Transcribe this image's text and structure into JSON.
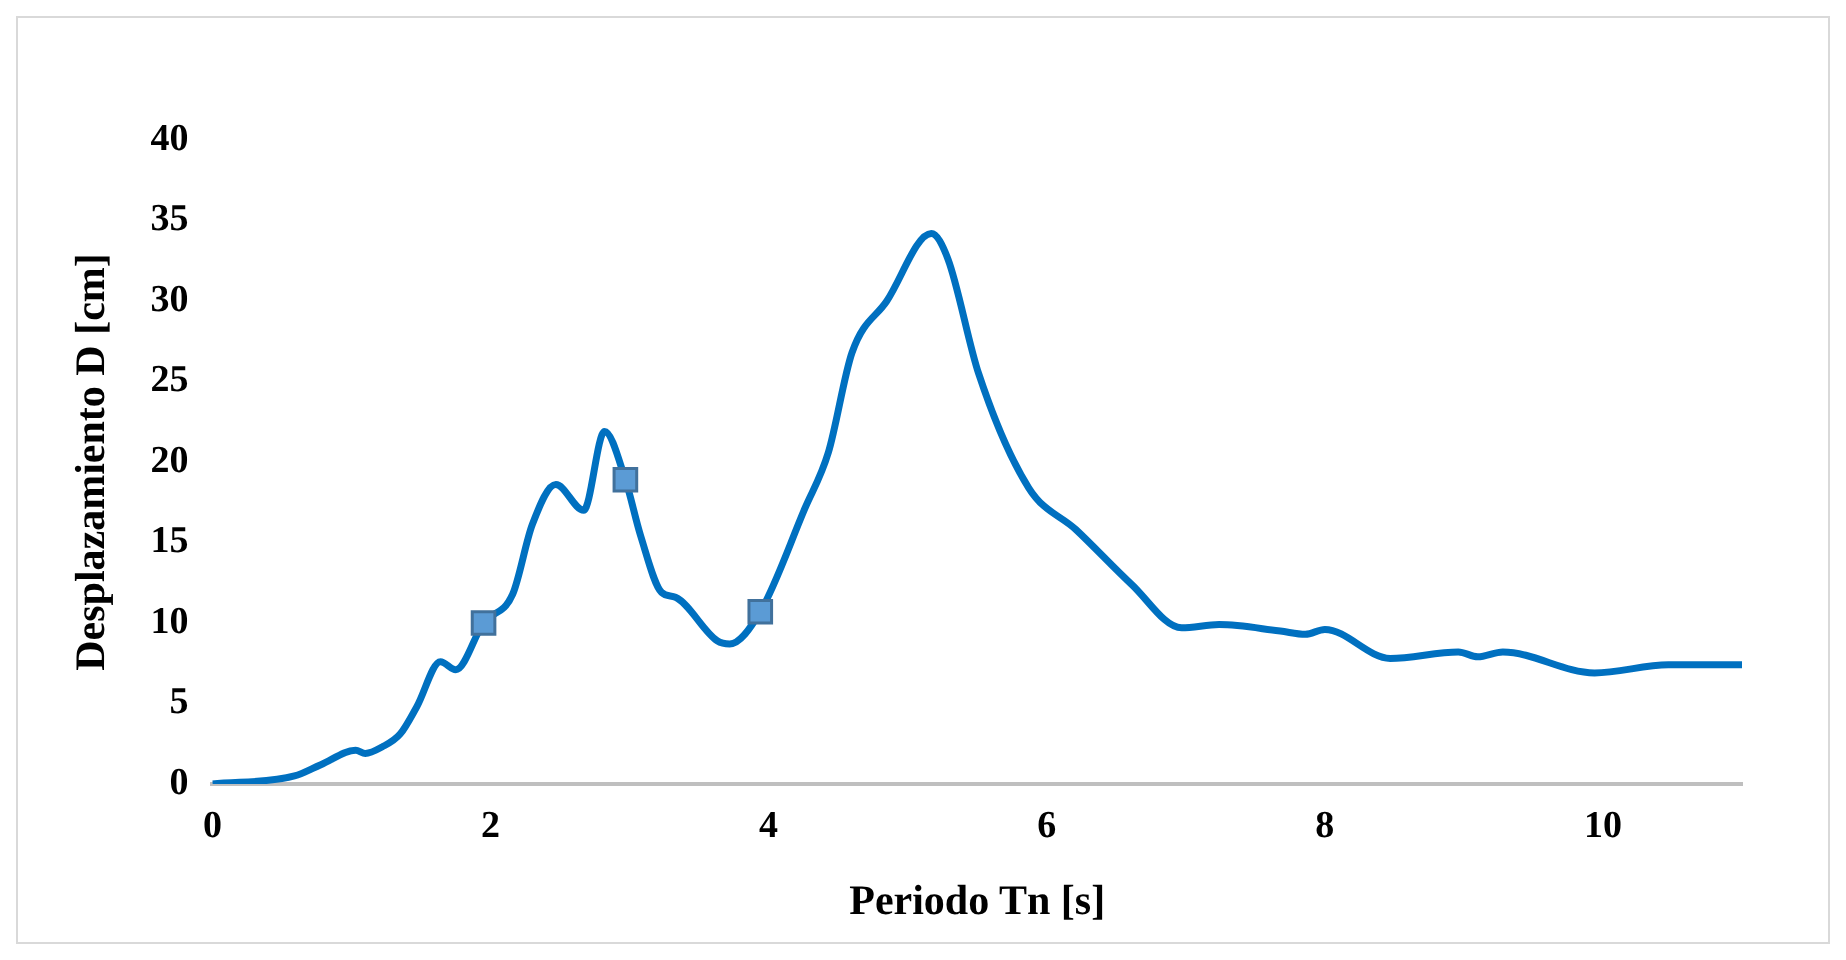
{
  "chart_data": {
    "type": "line",
    "xlabel": "Periodo Tn [s]",
    "ylabel": "Desplazamiento D [cm]",
    "xlim": [
      0,
      11
    ],
    "xticks": [
      0,
      2,
      4,
      6,
      8,
      10
    ],
    "ylim": [
      0,
      40
    ],
    "yticks": [
      0,
      5,
      10,
      15,
      20,
      25,
      30,
      35,
      40
    ],
    "grid": false,
    "legend": false,
    "series": [
      {
        "color": "#0070c0",
        "marker": "none",
        "x": [
          0,
          0.59,
          0.78,
          1.03,
          1.1,
          1.22,
          1.35,
          1.47,
          1.64,
          1.75,
          1.95,
          2.16,
          2.3,
          2.47,
          2.67,
          2.82,
          2.97,
          3.08,
          3.23,
          3.33,
          3.63,
          3.72,
          3.94,
          4.26,
          4.43,
          4.6,
          4.85,
          5.17,
          5.29,
          5.51,
          5.87,
          6.21,
          6.61,
          6.97,
          7.24,
          7.68,
          7.86,
          8.0,
          8.47,
          8.96,
          9.1,
          9.28,
          9.94,
          10.47,
          11.0
        ],
        "values": [
          0,
          0.5,
          1.2,
          2.1,
          1.9,
          2.3,
          3.1,
          4.8,
          7.6,
          7.1,
          10.0,
          11.8,
          16.1,
          18.6,
          17.0,
          21.9,
          18.9,
          15.4,
          11.9,
          11.6,
          8.9,
          8.7,
          10.7,
          17.1,
          20.6,
          26.8,
          30.0,
          34.2,
          32.6,
          25.5,
          18.4,
          15.8,
          12.4,
          9.7,
          9.9,
          9.5,
          9.3,
          9.6,
          7.8,
          8.2,
          7.9,
          8.2,
          6.9,
          7.4,
          7.4
        ]
      },
      {
        "type": "scatter",
        "color": "#5b9bd5",
        "marker": "square",
        "x": [
          1.95,
          2.97,
          3.94
        ],
        "values": [
          10.0,
          18.9,
          10.7
        ]
      }
    ]
  }
}
